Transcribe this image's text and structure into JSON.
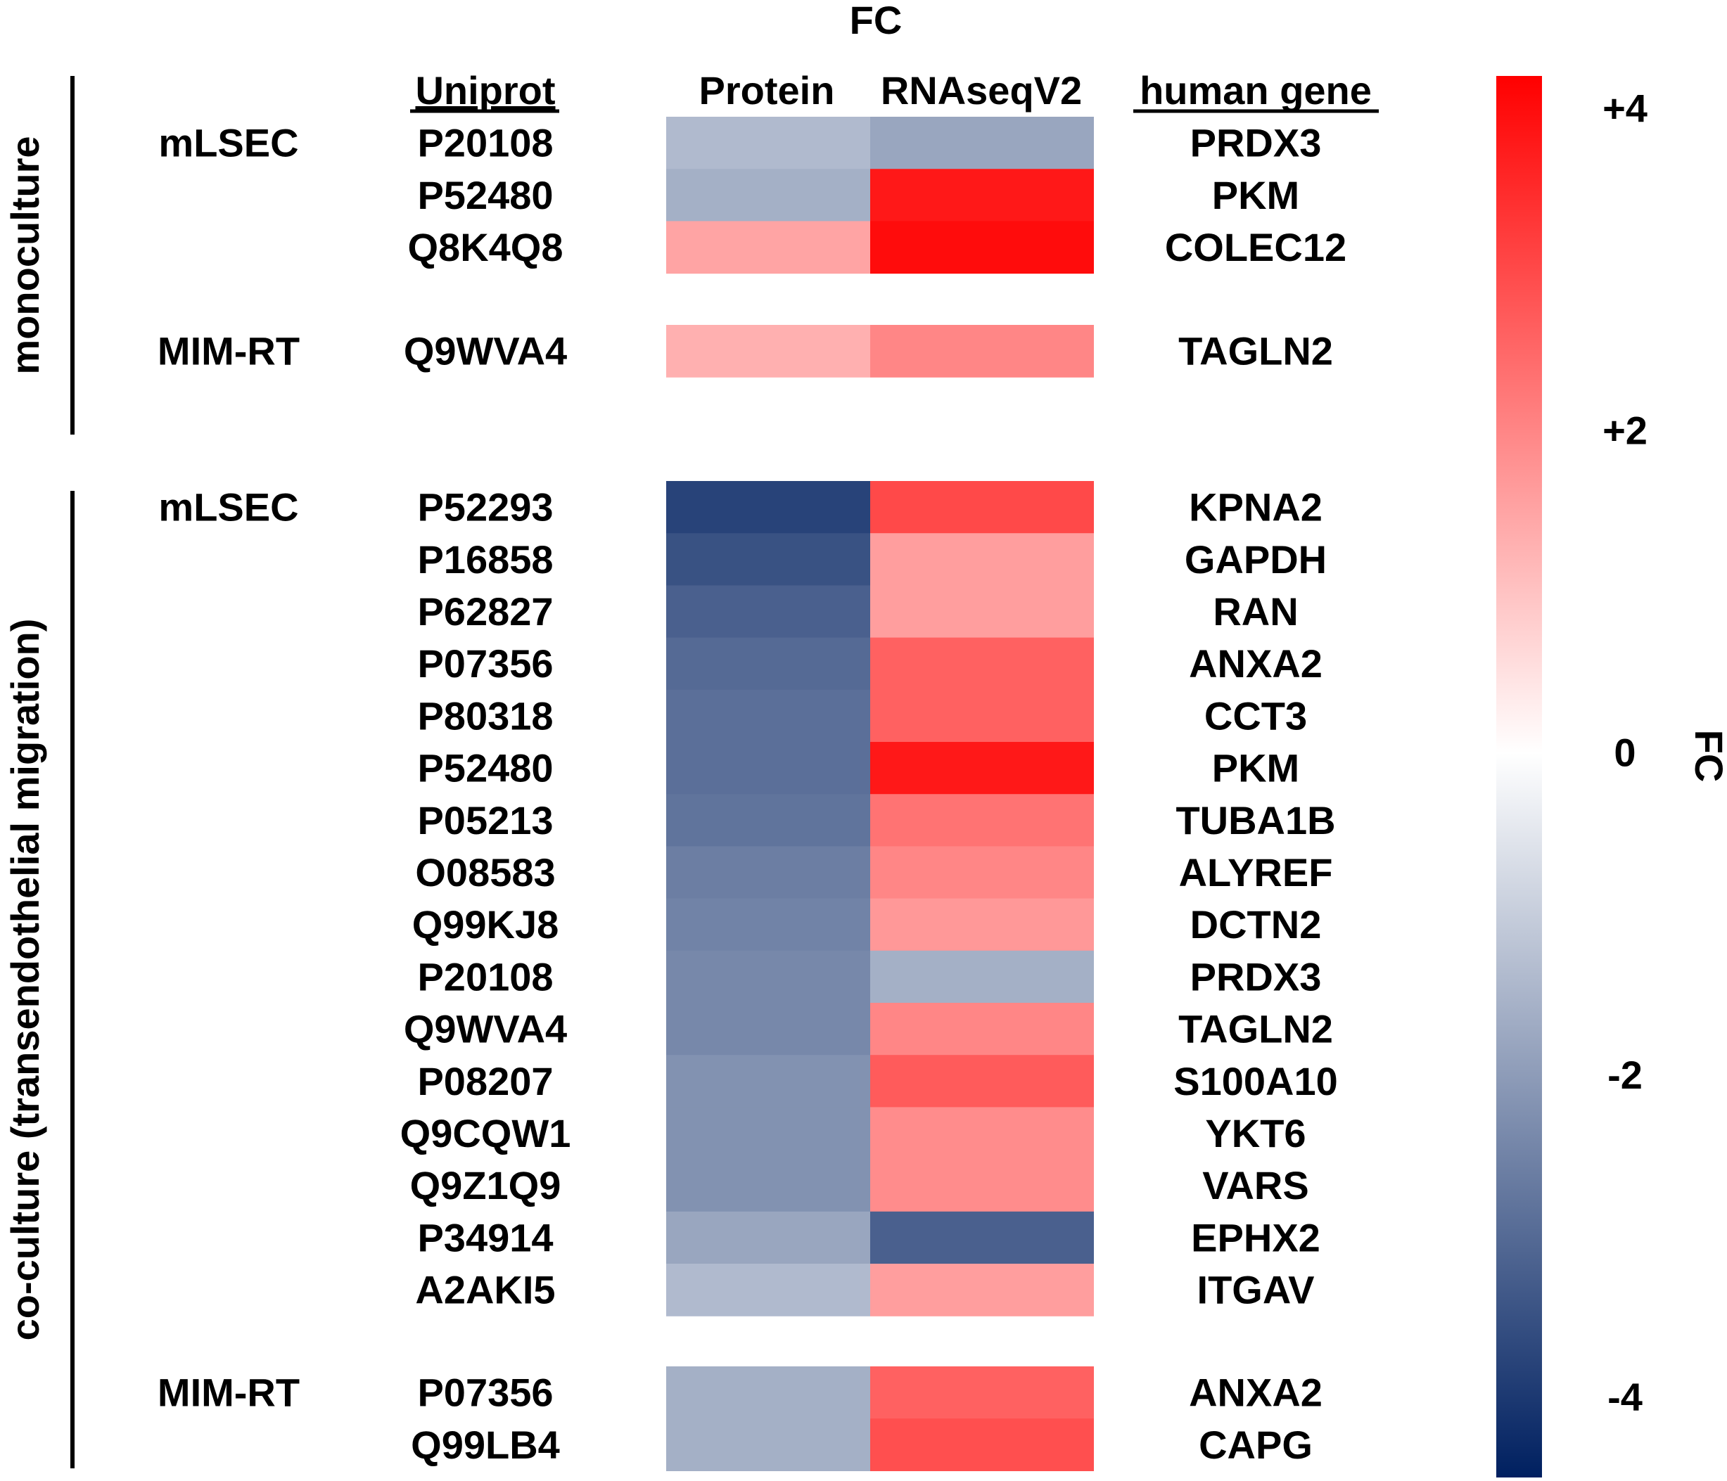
{
  "chart_data": {
    "type": "heatmap",
    "title": "FC",
    "column_headers": {
      "uniprot": "Uniprot",
      "protein": "Protein",
      "rnaseq": "RNAseqV2",
      "gene": "human gene"
    },
    "colorbar": {
      "label": "FC",
      "range": [
        -4.5,
        4.2
      ],
      "ticks": [
        {
          "value": 4,
          "label": "+4"
        },
        {
          "value": 2,
          "label": "+2"
        },
        {
          "value": 0,
          "label": "0"
        },
        {
          "value": -2,
          "label": "-2"
        },
        {
          "value": -4,
          "label": "-4"
        }
      ],
      "colors": {
        "low": "#002060",
        "mid": "#ffffff",
        "high": "#ff0000"
      }
    },
    "groups": [
      {
        "name": "monoculture",
        "subgroups": [
          {
            "name": "mLSEC",
            "rows": [
              {
                "uniprot": "P20108",
                "gene": "PRDX3",
                "protein": -1.4,
                "rnaseq": -1.8
              },
              {
                "uniprot": "P52480",
                "gene": "PKM",
                "protein": -1.6,
                "rnaseq": 3.8
              },
              {
                "uniprot": "Q8K4Q8",
                "gene": "COLEC12",
                "protein": 1.5,
                "rnaseq": 4.0
              }
            ]
          },
          {
            "name": "MIM-RT",
            "rows": [
              {
                "uniprot": "Q9WVA4",
                "gene": "TAGLN2",
                "protein": 1.3,
                "rnaseq": 2.0
              }
            ]
          }
        ]
      },
      {
        "name": "co-culture (transendothelial migration)",
        "subgroups": [
          {
            "name": "mLSEC",
            "rows": [
              {
                "uniprot": "P52293",
                "gene": "KPNA2",
                "protein": -3.8,
                "rnaseq": 3.0
              },
              {
                "uniprot": "P16858",
                "gene": "GAPDH",
                "protein": -3.5,
                "rnaseq": 1.6
              },
              {
                "uniprot": "P62827",
                "gene": "RAN",
                "protein": -3.2,
                "rnaseq": 1.6
              },
              {
                "uniprot": "P07356",
                "gene": "ANXA2",
                "protein": -3.0,
                "rnaseq": 2.6
              },
              {
                "uniprot": "P80318",
                "gene": "CCT3",
                "protein": -2.9,
                "rnaseq": 2.6
              },
              {
                "uniprot": "P52480",
                "gene": "PKM",
                "protein": -2.9,
                "rnaseq": 3.8
              },
              {
                "uniprot": "P05213",
                "gene": "TUBA1B",
                "protein": -2.8,
                "rnaseq": 2.3
              },
              {
                "uniprot": "O08583",
                "gene": "ALYREF",
                "protein": -2.6,
                "rnaseq": 2.0
              },
              {
                "uniprot": "Q99KJ8",
                "gene": "DCTN2",
                "protein": -2.5,
                "rnaseq": 1.7
              },
              {
                "uniprot": "P20108",
                "gene": "PRDX3",
                "protein": -2.4,
                "rnaseq": -1.6
              },
              {
                "uniprot": "Q9WVA4",
                "gene": "TAGLN2",
                "protein": -2.4,
                "rnaseq": 2.0
              },
              {
                "uniprot": "P08207",
                "gene": "S100A10",
                "protein": -2.2,
                "rnaseq": 2.7
              },
              {
                "uniprot": "Q9CQW1",
                "gene": "YKT6",
                "protein": -2.2,
                "rnaseq": 1.9
              },
              {
                "uniprot": "Q9Z1Q9",
                "gene": "VARS",
                "protein": -2.2,
                "rnaseq": 1.9
              },
              {
                "uniprot": "P34914",
                "gene": "EPHX2",
                "protein": -1.8,
                "rnaseq": -3.2
              },
              {
                "uniprot": "A2AKI5",
                "gene": "ITGAV",
                "protein": -1.4,
                "rnaseq": 1.6
              }
            ]
          },
          {
            "name": "MIM-RT",
            "rows": [
              {
                "uniprot": "P07356",
                "gene": "ANXA2",
                "protein": -1.6,
                "rnaseq": 2.6
              },
              {
                "uniprot": "Q99LB4",
                "gene": "CAPG",
                "protein": -1.6,
                "rnaseq": 2.9
              }
            ]
          }
        ]
      }
    ]
  }
}
